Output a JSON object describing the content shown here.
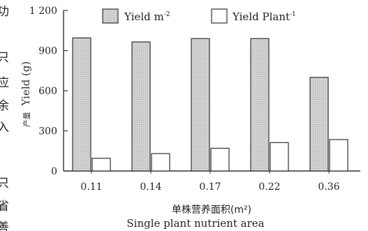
{
  "margin_fragments": [
    "功",
    "只",
    "应",
    "余",
    "入",
    "只",
    "省",
    "善"
  ],
  "chart_data": {
    "type": "bar",
    "categories": [
      "0.11",
      "0.14",
      "0.17",
      "0.22",
      "0.36"
    ],
    "series": [
      {
        "name": "Yield m",
        "superscript": "-2",
        "values": [
          995,
          965,
          990,
          990,
          700
        ],
        "color": "#cfcfcf",
        "pattern": "dotted"
      },
      {
        "name": "Yield Plant",
        "superscript": "-1",
        "values": [
          95,
          130,
          170,
          212,
          235
        ],
        "color": "#ffffff",
        "pattern": "none"
      }
    ],
    "yticks": [
      "0",
      "300",
      "600",
      "900",
      "1 200"
    ],
    "ylim": [
      0,
      1200
    ],
    "ylabel_cn": "产量",
    "ylabel": "Yield (g)",
    "xlabel_cn": "单株营养面积(m²)",
    "xlabel": "Single plant nutrient area",
    "legend_position": "top",
    "grid": false
  }
}
